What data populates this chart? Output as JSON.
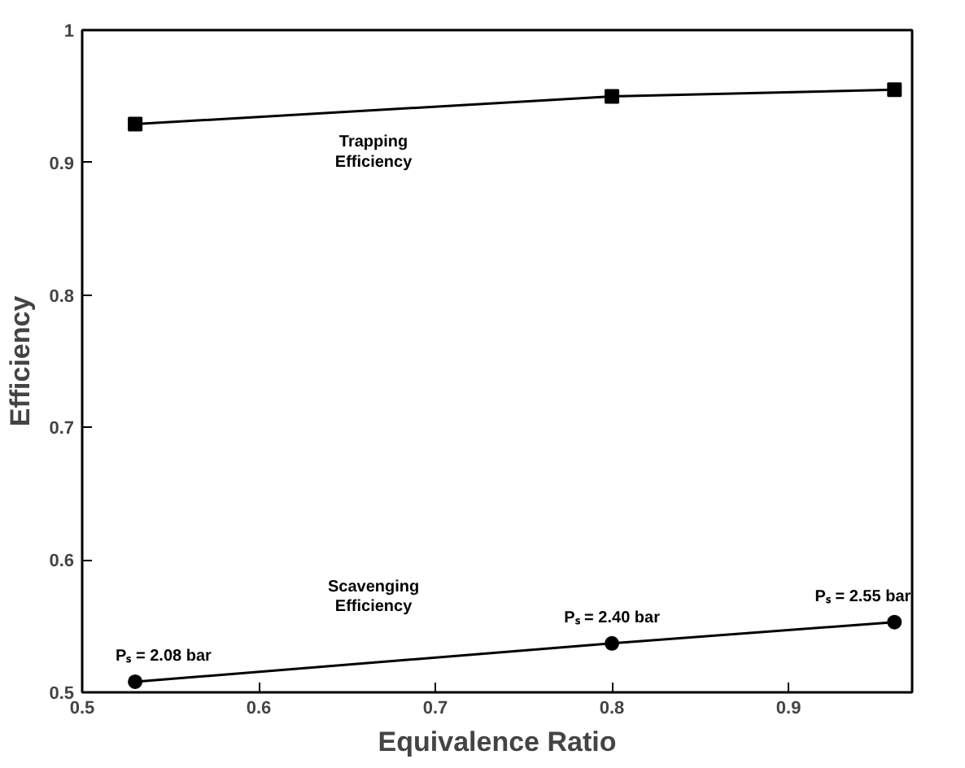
{
  "chart_data": {
    "type": "line",
    "xlabel": "Equivalence Ratio",
    "ylabel": "Efficiency",
    "x": [
      0.53,
      0.8,
      0.96
    ],
    "series": [
      {
        "name": "Trapping Efficiency",
        "color": "#000000",
        "marker": "square",
        "values": [
          0.929,
          0.95,
          0.955
        ]
      },
      {
        "name": "Scavenging Efficiency",
        "color": "#000000",
        "marker": "circle",
        "values": [
          0.508,
          0.537,
          0.553
        ]
      }
    ],
    "xlim": [
      0.5,
      0.97
    ],
    "xticks": [
      0.5,
      0.6,
      0.7,
      0.8,
      0.9
    ],
    "ylim": [
      0.5,
      1
    ],
    "yticks": [
      0.5,
      0.6,
      0.7,
      0.8,
      0.9,
      1
    ],
    "grid": false,
    "legend": false,
    "line_style": "solid",
    "annotations": [
      {
        "text": "Pₛ = 2.08 bar",
        "x": 0.53,
        "y": 0.508
      },
      {
        "text": "Pₛ = 2.40 bar",
        "x": 0.8,
        "y": 0.537
      },
      {
        "text": "Pₛ = 2.55 bar",
        "x": 0.96,
        "y": 0.553
      }
    ]
  }
}
